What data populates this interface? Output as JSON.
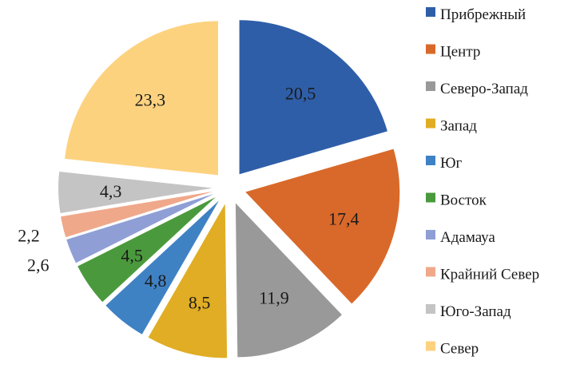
{
  "chart_data": {
    "type": "pie",
    "title": "",
    "slices": [
      {
        "label": "Прибрежный",
        "value": 20.5,
        "display": "20,5",
        "color": "#2f5ea8"
      },
      {
        "label": "Центр",
        "value": 17.4,
        "display": "17,4",
        "color": "#d9692a"
      },
      {
        "label": "Северо-Запад",
        "value": 11.9,
        "display": "11,9",
        "color": "#999999"
      },
      {
        "label": "Запад",
        "value": 8.5,
        "display": "8,5",
        "color": "#e0ad24"
      },
      {
        "label": "Юг",
        "value": 4.8,
        "display": "4,8",
        "color": "#3f82c4"
      },
      {
        "label": "Восток",
        "value": 4.5,
        "display": "4,5",
        "color": "#4a9a3d"
      },
      {
        "label": "Адамауа",
        "value": 2.6,
        "display": "2,6",
        "color": "#8f9fd6"
      },
      {
        "label": "Крайний Север",
        "value": 2.2,
        "display": "2,2",
        "color": "#f0a88a"
      },
      {
        "label": "Юго-Запад",
        "value": 4.3,
        "display": "4,3",
        "color": "#c4c4c4"
      },
      {
        "label": "Север",
        "value": 23.3,
        "display": "23,3",
        "color": "#fdd27f"
      }
    ],
    "legend_position": "right"
  }
}
